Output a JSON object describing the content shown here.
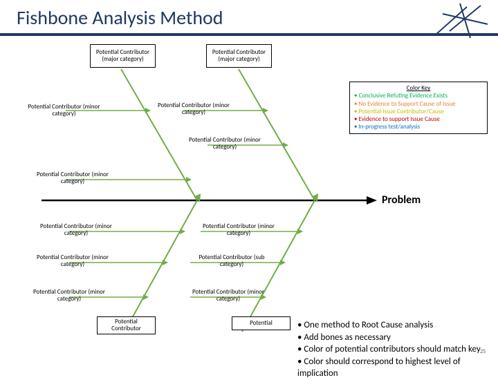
{
  "title": "Fishbone Analysis Method",
  "problem_label": "Problem",
  "page_number": "25",
  "colors": {
    "header": "#1f3864",
    "spine": "#000000",
    "bone": "#70ad47",
    "key_green": "#00b050",
    "key_orange": "#ed7d31",
    "key_yellow": "#bfbf00",
    "key_red": "#c00000",
    "key_blue": "#0070c0"
  },
  "top_majors": {
    "left": "Potential Contributor (major category)",
    "right": "Potential Contributor (major category)"
  },
  "bottom_majors": {
    "left": "Potential Contributor",
    "right": "Potential"
  },
  "top_minors": {
    "a": "Potential Contributor (minor category)",
    "b": "Potential Contributor (minor category)",
    "c": "Potential Contributor (minor category)",
    "d": "Potential Contributor (minor category)"
  },
  "bottom_minors": {
    "a": "Potential Contributor (minor category)",
    "b": "Potential Contributor (minor category)",
    "c": "Potential Contributor (minor category)",
    "d": "Potential Contributor (minor category)",
    "e": "Potential Contributor (sub category)",
    "f": "Potential Contributor (minor category)"
  },
  "color_key": {
    "title": "Color Key",
    "items": [
      {
        "color": "#00b050",
        "text": "Conclusive Refuting Evidence Exists"
      },
      {
        "color": "#ed7d31",
        "text": "No Evidence to Support Cause of Issue"
      },
      {
        "color": "#bfbf00",
        "text": "Potential Issue Contributor/Cause"
      },
      {
        "color": "#c00000",
        "text": "Evidence to support Issue Cause"
      },
      {
        "color": "#0070c0",
        "text": "In-progress test/analysis"
      }
    ]
  },
  "notes": [
    "One method to Root Cause analysis",
    "Add bones as necessary",
    "Color of potential contributors should match key",
    "Color should correspond to highest level of implication"
  ]
}
